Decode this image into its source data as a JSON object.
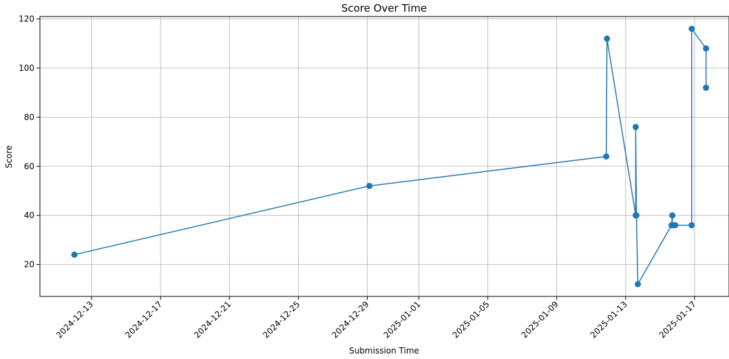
{
  "chart_data": {
    "type": "line",
    "title": "Score Over Time",
    "xlabel": "Submission Time",
    "ylabel": "Score",
    "x_axis_type": "date",
    "xlim": [
      "2024-12-10T00:00",
      "2025-01-19T00:00"
    ],
    "ylim": [
      7,
      121
    ],
    "grid": true,
    "legend": "none",
    "x_ticks": [
      "2024-12-13",
      "2024-12-17",
      "2024-12-21",
      "2024-12-25",
      "2024-12-29",
      "2025-01-01",
      "2025-01-05",
      "2025-01-09",
      "2025-01-13",
      "2025-01-17"
    ],
    "y_ticks": [
      20,
      40,
      60,
      80,
      100,
      120
    ],
    "series": [
      {
        "color": "#1f77b4",
        "marker": "circle",
        "points": [
          {
            "x": "2024-12-12T00:00",
            "y": 24
          },
          {
            "x": "2024-12-29T03:00",
            "y": 52
          },
          {
            "x": "2025-01-11T21:00",
            "y": 64
          },
          {
            "x": "2025-01-11T22:00",
            "y": 112
          },
          {
            "x": "2025-01-13T14:00",
            "y": 40
          },
          {
            "x": "2025-01-13T14:00",
            "y": 76
          },
          {
            "x": "2025-01-13T15:00",
            "y": 40
          },
          {
            "x": "2025-01-13T17:00",
            "y": 12
          },
          {
            "x": "2025-01-15T16:00",
            "y": 36
          },
          {
            "x": "2025-01-15T17:00",
            "y": 40
          },
          {
            "x": "2025-01-15T17:00",
            "y": 36
          },
          {
            "x": "2025-01-15T21:00",
            "y": 36
          },
          {
            "x": "2025-01-16T20:00",
            "y": 36
          },
          {
            "x": "2025-01-16T20:00",
            "y": 116
          },
          {
            "x": "2025-01-17T16:00",
            "y": 108
          },
          {
            "x": "2025-01-17T16:00",
            "y": 92
          }
        ]
      }
    ]
  }
}
